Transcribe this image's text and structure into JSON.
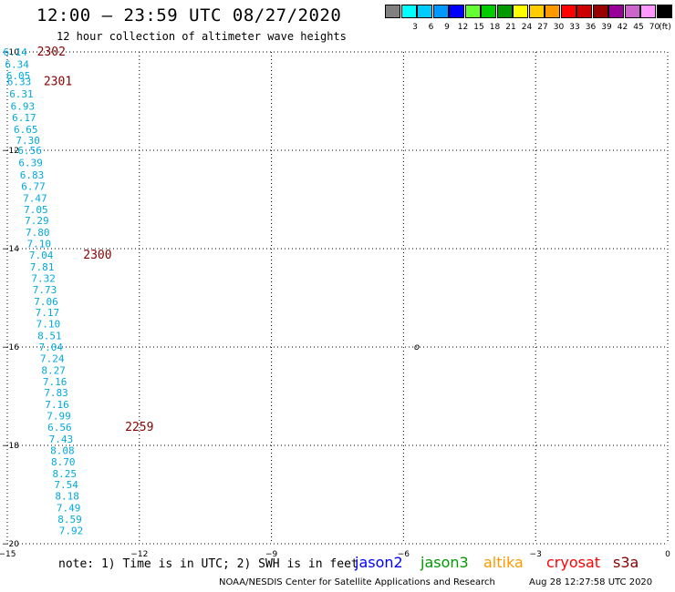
{
  "header": {
    "title": "12:00 – 23:59 UTC 08/27/2020",
    "subtitle": "12 hour collection of altimeter wave heights"
  },
  "legend": {
    "unit": "(ft)",
    "items": [
      {
        "color": "#808080",
        "label": ""
      },
      {
        "color": "#00ffff",
        "label": "3"
      },
      {
        "color": "#00ccff",
        "label": "6"
      },
      {
        "color": "#0099ff",
        "label": "9"
      },
      {
        "color": "#0000ff",
        "label": "12"
      },
      {
        "color": "#66ff33",
        "label": "15"
      },
      {
        "color": "#00cc00",
        "label": "18"
      },
      {
        "color": "#009900",
        "label": "21"
      },
      {
        "color": "#ffff00",
        "label": "24"
      },
      {
        "color": "#ffcc00",
        "label": "27"
      },
      {
        "color": "#ff9900",
        "label": "30"
      },
      {
        "color": "#ff0000",
        "label": "33"
      },
      {
        "color": "#cc0000",
        "label": "36"
      },
      {
        "color": "#990000",
        "label": "39"
      },
      {
        "color": "#990099",
        "label": "42"
      },
      {
        "color": "#cc66cc",
        "label": "45"
      },
      {
        "color": "#ff99ff",
        "label": "70"
      },
      {
        "color": "#000000",
        "label": ""
      }
    ]
  },
  "map": {
    "lon_range": [
      -15,
      0
    ],
    "lat_range": [
      -20,
      -10
    ],
    "lon_ticks": [
      {
        "value": -15,
        "label": "−15"
      },
      {
        "value": -12,
        "label": "−12"
      },
      {
        "value": -9,
        "label": "−9"
      },
      {
        "value": -6,
        "label": "−6"
      },
      {
        "value": -3,
        "label": "−3"
      },
      {
        "value": 0,
        "label": "0"
      }
    ],
    "lat_ticks": [
      {
        "value": -10,
        "label": "−10"
      },
      {
        "value": -12,
        "label": "−12"
      },
      {
        "value": -14,
        "label": "−14"
      },
      {
        "value": -16,
        "label": "−16"
      },
      {
        "value": -18,
        "label": "−18"
      },
      {
        "value": -20,
        "label": "−20"
      }
    ],
    "track_color": "#00a9dd",
    "time_color": "#880000",
    "island_label": "o",
    "island": {
      "lon": -5.7,
      "lat": -16.0
    }
  },
  "chart_data": {
    "type": "scatter",
    "xlabel": "",
    "ylabel": "",
    "xlim": [
      -15,
      0
    ],
    "ylim": [
      -20,
      -10
    ],
    "grid": true,
    "series": [
      {
        "unit": "ft",
        "points": [
          {
            "lon": -14.82,
            "lat": -10.0,
            "swh": "6.14"
          },
          {
            "lon": -14.78,
            "lat": -10.25,
            "swh": "6.34"
          },
          {
            "lon": -14.75,
            "lat": -10.48,
            "swh": "6.05"
          },
          {
            "lon": -14.73,
            "lat": -10.6,
            "swh": "6.33"
          },
          {
            "lon": -14.68,
            "lat": -10.85,
            "swh": "6.31"
          },
          {
            "lon": -14.65,
            "lat": -11.1,
            "swh": "6.93"
          },
          {
            "lon": -14.62,
            "lat": -11.33,
            "swh": "6.17"
          },
          {
            "lon": -14.58,
            "lat": -11.57,
            "swh": "6.65"
          },
          {
            "lon": -14.53,
            "lat": -11.8,
            "swh": "7.30"
          },
          {
            "lon": -14.49,
            "lat": -12.0,
            "swh": "6.56"
          },
          {
            "lon": -14.47,
            "lat": -12.25,
            "swh": "6.39"
          },
          {
            "lon": -14.44,
            "lat": -12.5,
            "swh": "6.83"
          },
          {
            "lon": -14.41,
            "lat": -12.73,
            "swh": "6.77"
          },
          {
            "lon": -14.37,
            "lat": -12.97,
            "swh": "7.47"
          },
          {
            "lon": -14.35,
            "lat": -13.2,
            "swh": "7.05"
          },
          {
            "lon": -14.33,
            "lat": -13.43,
            "swh": "7.29"
          },
          {
            "lon": -14.31,
            "lat": -13.67,
            "swh": "7.80"
          },
          {
            "lon": -14.28,
            "lat": -13.9,
            "swh": "7.10"
          },
          {
            "lon": -14.23,
            "lat": -14.13,
            "swh": "7.04"
          },
          {
            "lon": -14.21,
            "lat": -14.37,
            "swh": "7.81"
          },
          {
            "lon": -14.18,
            "lat": -14.6,
            "swh": "7.32"
          },
          {
            "lon": -14.15,
            "lat": -14.83,
            "swh": "7.73"
          },
          {
            "lon": -14.12,
            "lat": -15.07,
            "swh": "7.06"
          },
          {
            "lon": -14.09,
            "lat": -15.3,
            "swh": "7.17"
          },
          {
            "lon": -14.07,
            "lat": -15.53,
            "swh": "7.10"
          },
          {
            "lon": -14.04,
            "lat": -15.77,
            "swh": "8.51"
          },
          {
            "lon": -14.01,
            "lat": -16.0,
            "swh": "7.04"
          },
          {
            "lon": -13.98,
            "lat": -16.23,
            "swh": "7.24"
          },
          {
            "lon": -13.95,
            "lat": -16.47,
            "swh": "8.27"
          },
          {
            "lon": -13.92,
            "lat": -16.7,
            "swh": "7.16"
          },
          {
            "lon": -13.89,
            "lat": -16.93,
            "swh": "7.83"
          },
          {
            "lon": -13.87,
            "lat": -17.17,
            "swh": "7.16"
          },
          {
            "lon": -13.83,
            "lat": -17.4,
            "swh": "7.99"
          },
          {
            "lon": -13.81,
            "lat": -17.63,
            "swh": "6.56"
          },
          {
            "lon": -13.78,
            "lat": -17.87,
            "swh": "7.43"
          },
          {
            "lon": -13.75,
            "lat": -18.1,
            "swh": "8.08"
          },
          {
            "lon": -13.73,
            "lat": -18.33,
            "swh": "8.70"
          },
          {
            "lon": -13.7,
            "lat": -18.57,
            "swh": "8.25"
          },
          {
            "lon": -13.66,
            "lat": -18.8,
            "swh": "7.54"
          },
          {
            "lon": -13.64,
            "lat": -19.03,
            "swh": "8.18"
          },
          {
            "lon": -13.61,
            "lat": -19.27,
            "swh": "7.49"
          },
          {
            "lon": -13.58,
            "lat": -19.5,
            "swh": "8.59"
          },
          {
            "lon": -13.55,
            "lat": -19.73,
            "swh": "7.92"
          }
        ],
        "time_labels": [
          {
            "lon": -14.0,
            "lat": -10.0,
            "text": "2302"
          },
          {
            "lon": -13.85,
            "lat": -10.6,
            "text": "2301"
          },
          {
            "lon": -12.95,
            "lat": -14.13,
            "text": "2300"
          },
          {
            "lon": -12.0,
            "lat": -17.63,
            "text": "2259"
          }
        ]
      }
    ]
  },
  "footer": {
    "note": "note: 1) Time is in UTC; 2) SWH is in feet",
    "satellites": [
      {
        "name": "jason2",
        "color": "#0000ff"
      },
      {
        "name": "jason3",
        "color": "#009900"
      },
      {
        "name": "altika",
        "color": "#ff9900"
      },
      {
        "name": "cryosat",
        "color": "#ff0000"
      },
      {
        "name": "s3a",
        "color": "#880000"
      }
    ],
    "credit": "NOAA/NESDIS Center for Satellite Applications and Research",
    "timestamp": "Aug 28 12:27:58 UTC 2020"
  }
}
